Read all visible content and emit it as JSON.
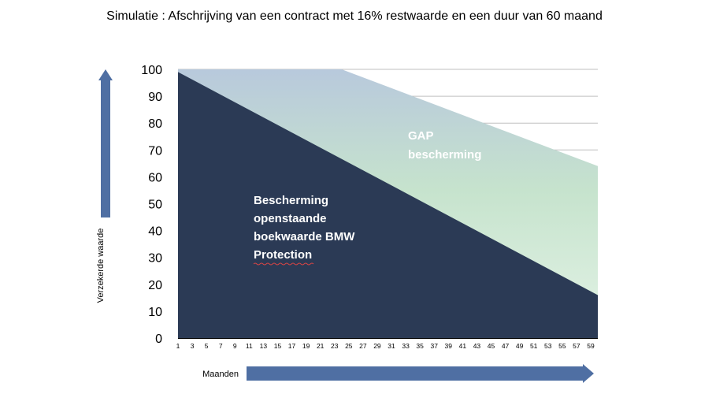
{
  "chart_data": {
    "type": "area",
    "title": "Simulatie : Afschrijving van een contract met 16% restwaarde en een duur van 60 maand",
    "xlabel": "Maanden",
    "ylabel": "Verzekerde waarde",
    "ylim": [
      0,
      100
    ],
    "yticks": [
      "0",
      "10",
      "20",
      "30",
      "40",
      "50",
      "60",
      "70",
      "80",
      "90",
      "100"
    ],
    "xlim": [
      1,
      60
    ],
    "xticks": [
      "1",
      "3",
      "5",
      "7",
      "9",
      "11",
      "13",
      "15",
      "17",
      "19",
      "21",
      "23",
      "25",
      "27",
      "29",
      "31",
      "33",
      "35",
      "37",
      "39",
      "41",
      "43",
      "45",
      "47",
      "49",
      "51",
      "53",
      "55",
      "57",
      "59"
    ],
    "grid": true,
    "series": [
      {
        "name": "Bescherming openstaande boekwaarde BMW Protection",
        "points": [
          [
            1,
            99
          ],
          [
            60,
            16
          ]
        ],
        "color": "#2b3a55"
      },
      {
        "name": "GAP bescherming",
        "points": [
          [
            1,
            100
          ],
          [
            24,
            100
          ],
          [
            60,
            64
          ]
        ],
        "color_top": "#b8c9dc",
        "color_bottom": "#dff0e2"
      }
    ],
    "labels": {
      "net": [
        "Bescherming",
        "openstaande",
        "boekwaarde  BMW",
        "Protection"
      ],
      "gap": [
        "GAP",
        "bescherming"
      ]
    },
    "colors": {
      "axis_arrow": "#4f6fa3",
      "gridline": "#bfbfbf"
    }
  }
}
